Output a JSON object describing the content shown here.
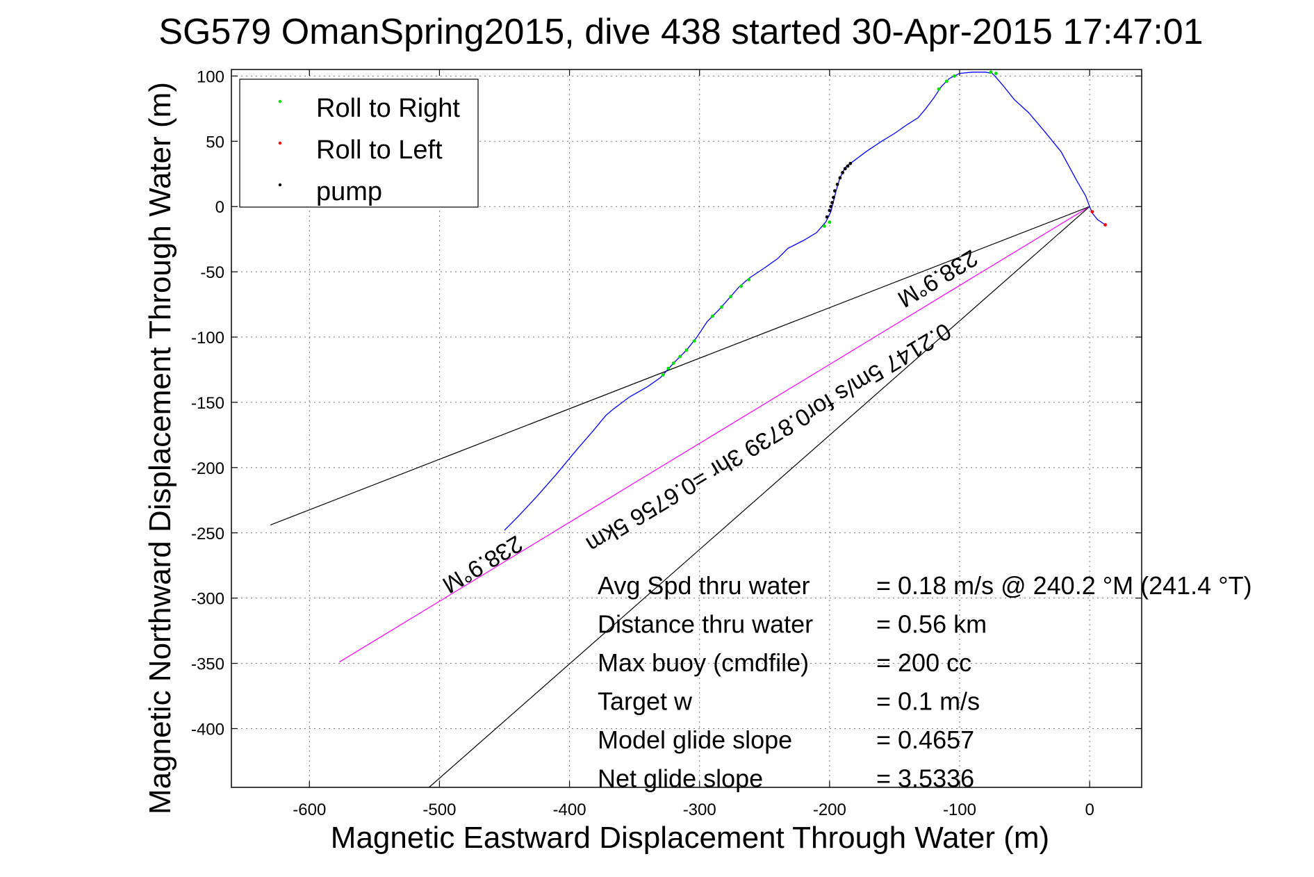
{
  "chart_data": {
    "type": "line",
    "title": "SG579 OmanSpring2015, dive 438 started 30-Apr-2015 17:47:01",
    "xlabel": "Magnetic Eastward Displacement Through Water (m)",
    "ylabel": "Magnetic Northward Displacement Through Water (m)",
    "xlim": [
      -660,
      40
    ],
    "ylim": [
      -445,
      105
    ],
    "xticks": [
      -600,
      -500,
      -400,
      -300,
      -200,
      -100,
      0
    ],
    "yticks": [
      100,
      50,
      0,
      -50,
      -100,
      -150,
      -200,
      -250,
      -300,
      -350,
      -400
    ],
    "grid": true,
    "legend": {
      "position": "top-left",
      "entries": [
        {
          "label": "Roll to Right",
          "color": "#00dd00"
        },
        {
          "label": "Roll to Left",
          "color": "#ff0000"
        },
        {
          "label": "pump",
          "color": "#000000"
        }
      ]
    },
    "track": {
      "color": "#0000ff",
      "points": [
        [
          12,
          -14
        ],
        [
          6,
          -10
        ],
        [
          2,
          -5
        ],
        [
          0,
          0
        ],
        [
          -3,
          8
        ],
        [
          -10,
          20
        ],
        [
          -22,
          42
        ],
        [
          -35,
          58
        ],
        [
          -47,
          72
        ],
        [
          -58,
          82
        ],
        [
          -66,
          92
        ],
        [
          -72,
          99
        ],
        [
          -75,
          102
        ],
        [
          -80,
          103
        ],
        [
          -90,
          103
        ],
        [
          -100,
          102
        ],
        [
          -108,
          98
        ],
        [
          -114,
          92
        ],
        [
          -120,
          83
        ],
        [
          -126,
          75
        ],
        [
          -132,
          68
        ],
        [
          -140,
          63
        ],
        [
          -150,
          56
        ],
        [
          -160,
          50
        ],
        [
          -172,
          42
        ],
        [
          -184,
          33
        ],
        [
          -188,
          30
        ],
        [
          -192,
          22
        ],
        [
          -195,
          12
        ],
        [
          -197,
          4
        ],
        [
          -198,
          0
        ],
        [
          -199,
          -4
        ],
        [
          -203,
          -12
        ],
        [
          -210,
          -20
        ],
        [
          -220,
          -26
        ],
        [
          -232,
          -32
        ],
        [
          -240,
          -40
        ],
        [
          -250,
          -47
        ],
        [
          -262,
          -55
        ],
        [
          -270,
          -62
        ],
        [
          -277,
          -70
        ],
        [
          -285,
          -79
        ],
        [
          -294,
          -88
        ],
        [
          -302,
          -100
        ],
        [
          -310,
          -110
        ],
        [
          -320,
          -120
        ],
        [
          -330,
          -131
        ],
        [
          -340,
          -138
        ],
        [
          -354,
          -146
        ],
        [
          -366,
          -155
        ],
        [
          -372,
          -160
        ],
        [
          -382,
          -172
        ],
        [
          -395,
          -187
        ],
        [
          -410,
          -205
        ],
        [
          -425,
          -222
        ],
        [
          -440,
          -238
        ],
        [
          -450,
          -248
        ]
      ]
    },
    "roll_right_points": [
      [
        -72,
        102
      ],
      [
        -76,
        103
      ],
      [
        -104,
        100
      ],
      [
        -110,
        96
      ],
      [
        -116,
        90
      ],
      [
        -262,
        -56
      ],
      [
        -268,
        -61
      ],
      [
        -276,
        -69
      ],
      [
        -283,
        -77
      ],
      [
        -290,
        -84
      ],
      [
        -200,
        -12
      ],
      [
        -204,
        -15
      ],
      [
        -304,
        -103
      ],
      [
        -310,
        -110
      ],
      [
        -315,
        -115
      ],
      [
        -320,
        -120
      ],
      [
        -324,
        -124
      ],
      [
        -328,
        -129
      ]
    ],
    "roll_left_points": [
      [
        12,
        -14
      ],
      [
        2,
        -4
      ]
    ],
    "pump_points": [
      [
        -184,
        33
      ],
      [
        -186,
        31
      ],
      [
        -188,
        29
      ],
      [
        -190,
        26
      ],
      [
        -192,
        22
      ],
      [
        -194,
        17
      ],
      [
        -196,
        12
      ],
      [
        -197,
        7
      ],
      [
        -198,
        3
      ],
      [
        -199,
        0
      ],
      [
        -200,
        -3
      ],
      [
        -202,
        -8
      ]
    ],
    "reference_lines": [
      {
        "from": [
          0,
          0
        ],
        "to": [
          -630,
          -244
        ],
        "color": "#000000"
      },
      {
        "from": [
          0,
          0
        ],
        "to": [
          -577,
          -349
        ],
        "color": "#ff00ff"
      },
      {
        "from": [
          0,
          0
        ],
        "to": [
          -508,
          -445
        ],
        "color": "#000000"
      }
    ],
    "annotations": [
      {
        "text": "238.9°M",
        "at": [
          -470,
          -269
        ],
        "angle_deg": 148.9
      },
      {
        "text": "0.2147 5m/s for0.8739 3hr =0.6756 5km",
        "at": [
          -250,
          -172
        ],
        "angle_deg": 148.9
      },
      {
        "text": "238.9°M",
        "at": [
          -120,
          -50
        ],
        "angle_deg": 148.9
      }
    ],
    "stats": [
      {
        "label": "Avg Spd thru water",
        "value": "=  0.18 m/s @ 240.2 °M (241.4 °T)"
      },
      {
        "label": "Distance thru water",
        "value": "=  0.56 km"
      },
      {
        "label": "Max buoy (cmdfile)",
        "value": "= 200 cc"
      },
      {
        "label": "Target w",
        "value": "= 0.1 m/s"
      },
      {
        "label": "Model glide slope",
        "value": "= 0.4657"
      },
      {
        "label": "Net glide slope",
        "value": "= 3.5336"
      }
    ]
  }
}
